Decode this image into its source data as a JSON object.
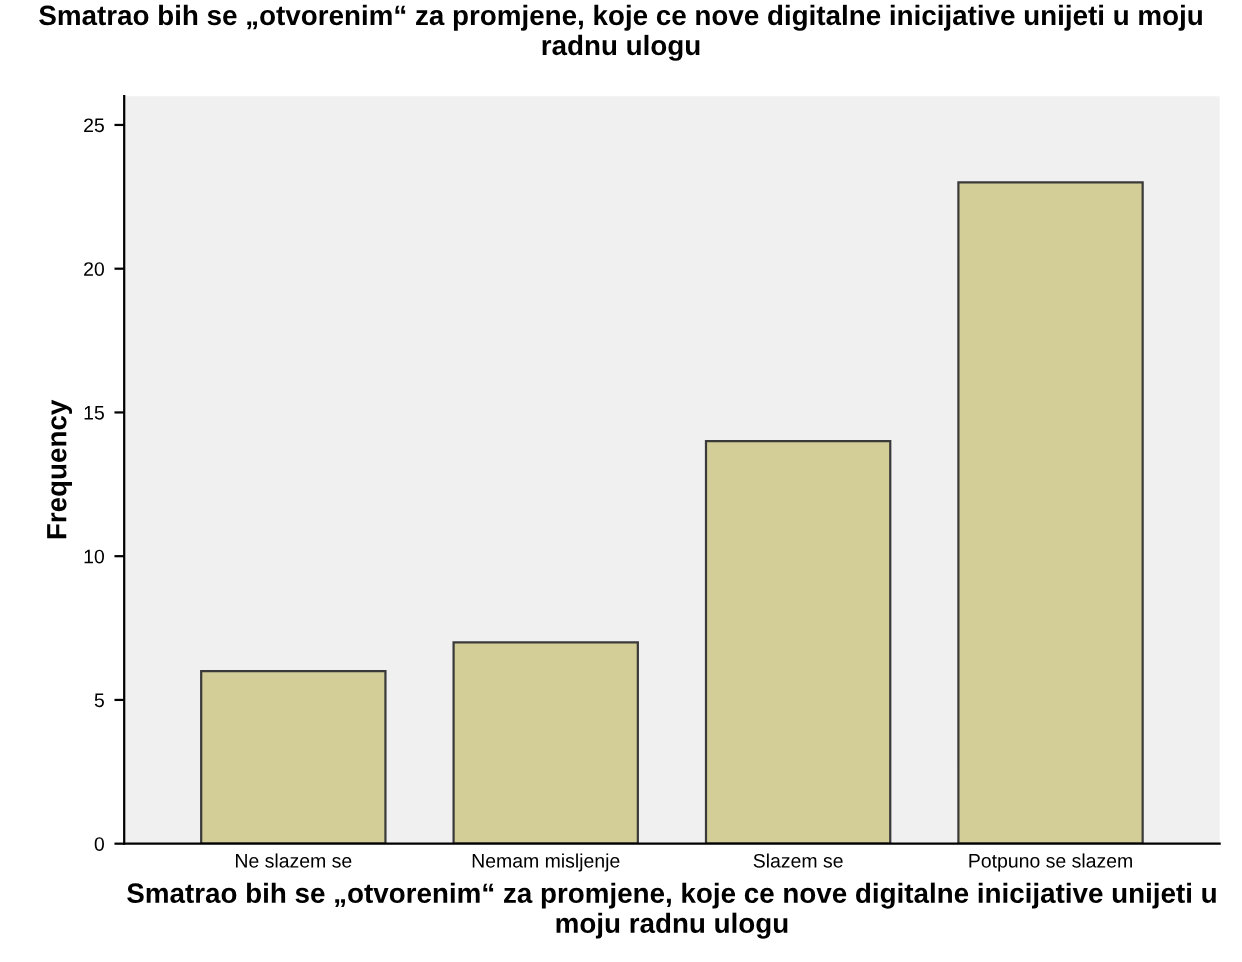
{
  "chart_data": {
    "type": "bar",
    "title": "Smatrao bih se „otvorenim“ za promjene, koje ce nove digitalne inicijative unijeti u moju radnu ulogu",
    "xlabel": "Smatrao bih se „otvorenim“ za promjene, koje ce nove digitalne inicijative unijeti u moju radnu ulogu",
    "ylabel": "Frequency",
    "categories": [
      "Ne slazem se",
      "Nemam misljenje",
      "Slazem se",
      "Potpuno se slazem"
    ],
    "values": [
      6,
      7,
      14,
      23
    ],
    "color": "#d3ce97",
    "ylim": [
      0,
      26
    ],
    "yticks": [
      0,
      5,
      10,
      15,
      20,
      25
    ],
    "grid": false,
    "legend": false
  }
}
